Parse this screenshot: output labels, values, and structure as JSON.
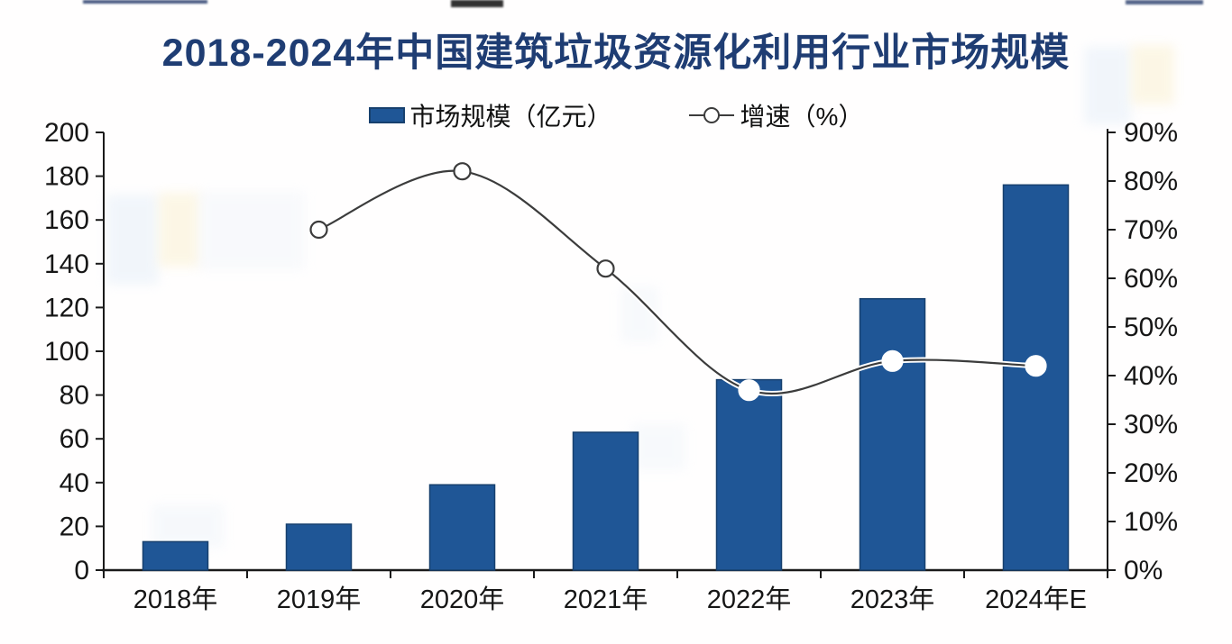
{
  "page": {
    "background": "#ffffff"
  },
  "title": {
    "text": "2018-2024年中国建筑垃圾资源化利用行业市场规模",
    "color": "#1f3d73"
  },
  "legend": {
    "position": "top",
    "items": [
      {
        "icon": "bar-swatch-icon",
        "label": "市场规模（亿元）",
        "color": "#1f5696"
      },
      {
        "icon": "line-marker-icon",
        "label": "增速（%）",
        "color": "#3c3c3c"
      }
    ]
  },
  "chart_data": {
    "type": "bar",
    "subtype": "bar+line-combo",
    "title": "2018-2024年中国建筑垃圾资源化利用行业市场规模",
    "categories": [
      "2018年",
      "2019年",
      "2020年",
      "2021年",
      "2022年",
      "2023年",
      "2024年E"
    ],
    "series": [
      {
        "name": "市场规模（亿元）",
        "type": "bar",
        "axis": "left",
        "values": [
          13,
          21,
          39,
          63,
          87,
          124,
          176
        ],
        "color": "#1f5696",
        "border_color": "#17406e"
      },
      {
        "name": "增速（%）",
        "type": "line",
        "axis": "right",
        "values": [
          null,
          70,
          82,
          62,
          37,
          43,
          42
        ],
        "color": "#3c3c3c",
        "marker": "circle",
        "marker_fill": "#ffffff"
      }
    ],
    "left_axis": {
      "min": 0,
      "max": 200,
      "step": 20,
      "ticks": [
        "0",
        "20",
        "40",
        "60",
        "80",
        "100",
        "120",
        "140",
        "160",
        "180",
        "200"
      ]
    },
    "right_axis": {
      "min": 0,
      "max": 90,
      "step": 10,
      "ticks": [
        "0%",
        "10%",
        "20%",
        "30%",
        "40%",
        "50%",
        "60%",
        "70%",
        "80%",
        "90%"
      ]
    },
    "grid": false,
    "legend_position": "top-center"
  }
}
